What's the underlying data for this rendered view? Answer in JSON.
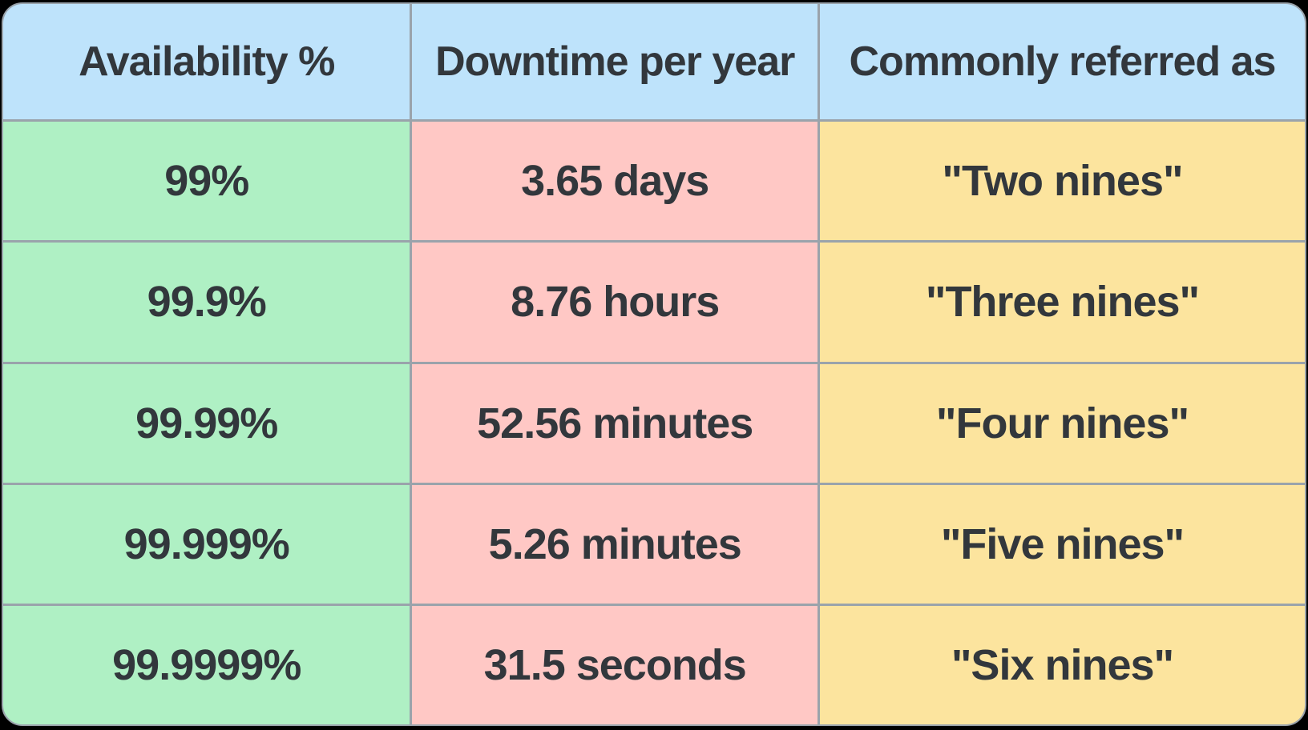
{
  "chart_data": {
    "type": "table",
    "columns": [
      "Availability %",
      "Downtime per year",
      "Commonly referred as"
    ],
    "rows": [
      [
        "99%",
        "3.65 days",
        "\"Two nines\""
      ],
      [
        "99.9%",
        "8.76 hours",
        "\"Three nines\""
      ],
      [
        "99.99%",
        "52.56 minutes",
        "\"Four nines\""
      ],
      [
        "99.999%",
        "5.26 minutes",
        "\"Five nines\""
      ],
      [
        "99.9999%",
        "31.5 seconds",
        "\"Six nines\""
      ]
    ]
  },
  "table": {
    "headers": [
      "Availability %",
      "Downtime per year",
      "Commonly referred as"
    ],
    "rows": [
      [
        "99%",
        "3.65 days",
        "\"Two nines\""
      ],
      [
        "99.9%",
        "8.76 hours",
        "\"Three nines\""
      ],
      [
        "99.99%",
        "52.56 minutes",
        "\"Four nines\""
      ],
      [
        "99.999%",
        "5.26 minutes",
        "\"Five nines\""
      ],
      [
        "99.9999%",
        "31.5 seconds",
        "\"Six nines\""
      ]
    ],
    "colors": {
      "page-bg": "#000000",
      "header-bg": "#bee3fb",
      "col1-bg": "#aff0c4",
      "col2-bg": "#ffc8c5",
      "col3-bg": "#fce49e",
      "border": "#9aa3ab",
      "text": "#32373c"
    }
  }
}
